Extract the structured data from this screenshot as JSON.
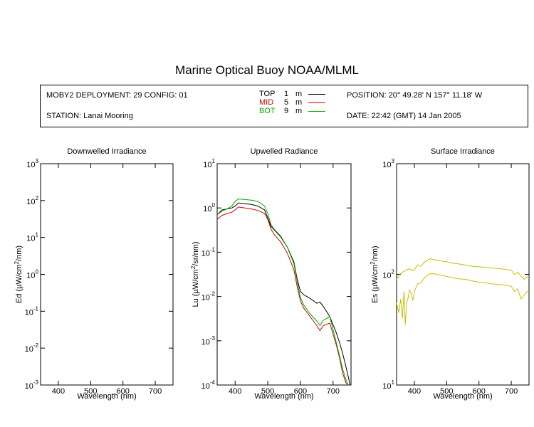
{
  "title": "Marine Optical Buoy NOAA/MLML",
  "info": {
    "deployment": "MOBY2 DEPLOYMENT: 29 CONFIG: 01",
    "station": "STATION: Lanai Mooring",
    "position": "POSITION: 20° 49.28' N   157° 11.18' W",
    "date": "DATE: 22:42 (GMT) 14 Jan 2005",
    "legend": [
      {
        "name": "TOP",
        "depth": "1",
        "unit": "m",
        "color": "#000000"
      },
      {
        "name": "MID",
        "depth": "5",
        "unit": "m",
        "color": "#cc0000"
      },
      {
        "name": "BOT",
        "depth": "9",
        "unit": "m",
        "color": "#00aa00"
      }
    ]
  },
  "chart_data": [
    {
      "type": "line",
      "title": "Downwelled Irradiance",
      "xlabel": "Wavelength (nm)",
      "ylabel": "Ed  (µW/cm²/nm)",
      "xlim": [
        345,
        755
      ],
      "ylim": [
        0.001,
        1000
      ],
      "yscale": "log",
      "xticks": [
        400,
        500,
        600,
        700
      ],
      "yticks": [
        {
          "base": "10",
          "exp": "-3"
        },
        {
          "base": "10",
          "exp": "-2"
        },
        {
          "base": "10",
          "exp": "-1"
        },
        {
          "base": "10",
          "exp": "0"
        },
        {
          "base": "10",
          "exp": "1"
        },
        {
          "base": "10",
          "exp": "2"
        },
        {
          "base": "10",
          "exp": "3"
        }
      ],
      "series": []
    },
    {
      "type": "line",
      "title": "Upwelled Radiance",
      "xlabel": "Wavelength (nm)",
      "ylabel": "Lu  (µW/cm²/sr/nm)",
      "xlim": [
        345,
        755
      ],
      "ylim": [
        0.0001,
        10
      ],
      "yscale": "log",
      "xticks": [
        400,
        500,
        600,
        700
      ],
      "yticks": [
        {
          "base": "10",
          "exp": "-4"
        },
        {
          "base": "10",
          "exp": "-3"
        },
        {
          "base": "10",
          "exp": "-2"
        },
        {
          "base": "10",
          "exp": "-1"
        },
        {
          "base": "10",
          "exp": "0"
        },
        {
          "base": "10",
          "exp": "1"
        }
      ],
      "series": [
        {
          "name": "TOP",
          "color": "#000000",
          "x": [
            345,
            360,
            375,
            390,
            400,
            410,
            430,
            450,
            470,
            490,
            500,
            510,
            520,
            540,
            560,
            580,
            590,
            600,
            610,
            630,
            650,
            660,
            670,
            690,
            710,
            720,
            730,
            740,
            750,
            752
          ],
          "y": [
            0.7,
            0.9,
            0.95,
            1.0,
            1.1,
            1.3,
            1.25,
            1.2,
            1.1,
            0.9,
            0.6,
            0.38,
            0.32,
            0.22,
            0.13,
            0.06,
            0.025,
            0.013,
            0.011,
            0.009,
            0.007,
            0.0075,
            0.006,
            0.0035,
            0.0015,
            0.0009,
            0.0005,
            0.00025,
            0.00012,
            0.0001
          ]
        },
        {
          "name": "MID",
          "color": "#cc0000",
          "x": [
            345,
            360,
            375,
            390,
            400,
            410,
            430,
            450,
            470,
            490,
            500,
            510,
            520,
            540,
            560,
            580,
            590,
            600,
            610,
            630,
            650,
            660,
            670,
            690,
            710,
            720,
            730,
            740,
            748
          ],
          "y": [
            0.55,
            0.68,
            0.75,
            0.8,
            0.9,
            1.05,
            1.0,
            0.95,
            0.88,
            0.75,
            0.55,
            0.33,
            0.25,
            0.17,
            0.095,
            0.04,
            0.017,
            0.008,
            0.0055,
            0.0035,
            0.0022,
            0.0017,
            0.0022,
            0.0025,
            0.0008,
            0.0004,
            0.00018,
            0.00011,
            0.0001
          ]
        },
        {
          "name": "BOT",
          "color": "#00aa00",
          "x": [
            345,
            360,
            375,
            390,
            400,
            410,
            430,
            450,
            470,
            490,
            500,
            510,
            520,
            540,
            560,
            580,
            590,
            600,
            610,
            630,
            650,
            660,
            670,
            690,
            710,
            720,
            730,
            740,
            746
          ],
          "y": [
            0.7,
            0.85,
            0.95,
            1.1,
            1.4,
            1.6,
            1.55,
            1.5,
            1.4,
            1.1,
            0.75,
            0.42,
            0.33,
            0.23,
            0.13,
            0.055,
            0.022,
            0.0095,
            0.0065,
            0.004,
            0.0028,
            0.0022,
            0.0029,
            0.0035,
            0.0009,
            0.00045,
            0.00022,
            0.00013,
            0.0001
          ]
        }
      ]
    },
    {
      "type": "line",
      "title": "Surface Irradiance",
      "xlabel": "Wavelength (nm)",
      "ylabel": "Es  (µW/cm²/nm)",
      "xlim": [
        345,
        755
      ],
      "ylim": [
        10,
        1000
      ],
      "yscale": "log",
      "xticks": [
        400,
        500,
        600,
        700
      ],
      "yticks": [
        {
          "base": "10",
          "exp": "1"
        },
        {
          "base": "10",
          "exp": "2"
        },
        {
          "base": "10",
          "exp": "3"
        }
      ],
      "series": [
        {
          "color": "#c8c000",
          "x": [
            345,
            355,
            365,
            375,
            385,
            395,
            400,
            410,
            420,
            430,
            440,
            450,
            460,
            470,
            480,
            490,
            500,
            520,
            540,
            560,
            580,
            600,
            620,
            640,
            660,
            680,
            700,
            710,
            720,
            730,
            740,
            750,
            755
          ],
          "y": [
            90,
            100,
            105,
            110,
            112,
            108,
            110,
            122,
            118,
            128,
            134,
            138,
            136,
            134,
            133,
            131,
            130,
            126,
            124,
            121,
            118,
            117,
            116,
            114,
            113,
            111,
            109,
            100,
            104,
            97,
            90,
            95,
            96
          ]
        },
        {
          "color": "#c8c000",
          "x": [
            345,
            352,
            358,
            363,
            368,
            372,
            376,
            380,
            385,
            390,
            395,
            400,
            410,
            420,
            430,
            440,
            450,
            460,
            470,
            480,
            490,
            500,
            520,
            540,
            560,
            580,
            600,
            620,
            640,
            660,
            680,
            700,
            710,
            720,
            730,
            740,
            750,
            755
          ],
          "y": [
            55,
            45,
            60,
            40,
            70,
            35,
            55,
            60,
            72,
            68,
            58,
            70,
            82,
            84,
            92,
            98,
            102,
            101,
            100,
            99,
            97,
            96,
            93,
            91,
            90,
            87,
            85,
            84,
            82,
            81,
            80,
            78,
            70,
            74,
            60,
            65,
            70,
            72
          ]
        }
      ]
    }
  ]
}
